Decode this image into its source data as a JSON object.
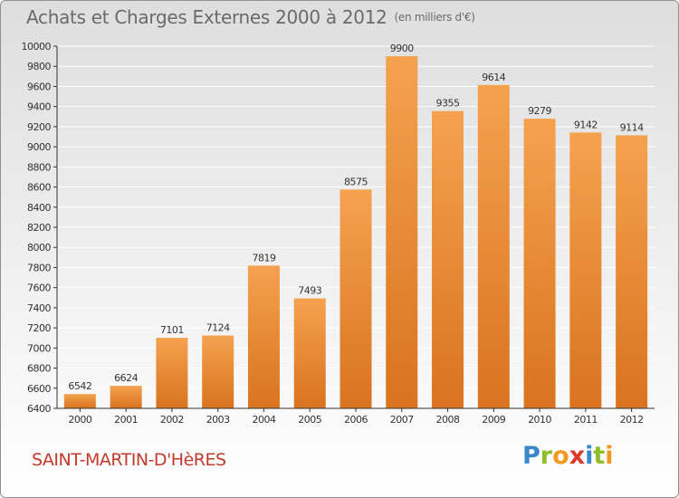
{
  "title": "Achats et Charges Externes 2000 à 2012",
  "title_unit": "(en milliers d'€)",
  "location": "SAINT-MARTIN-D'HèRES",
  "logo": {
    "text": "Proxiti",
    "letters": [
      "P",
      "r",
      "o",
      "x",
      "i",
      "t",
      "i"
    ],
    "colors": [
      "#3a87c9",
      "#8fbe2d",
      "#f29a1f",
      "#d93a2b",
      "#3a87c9",
      "#8fbe2d",
      "#f29a1f"
    ]
  },
  "colors": {
    "bar_light": "#f5a24f",
    "bar_dark": "#d9731f",
    "axis": "#333333",
    "grid": "#ffffff"
  },
  "chart_data": {
    "type": "bar",
    "title": "Achats et Charges Externes 2000 à 2012",
    "subtitle": "(en milliers d'€)",
    "categories": [
      "2000",
      "2001",
      "2002",
      "2003",
      "2004",
      "2005",
      "2006",
      "2007",
      "2008",
      "2009",
      "2010",
      "2011",
      "2012"
    ],
    "values": [
      6542,
      6624,
      7101,
      7124,
      7819,
      7493,
      8575,
      9900,
      9355,
      9614,
      9279,
      9142,
      9114
    ],
    "ylim": [
      6400,
      10000
    ],
    "yticks": [
      6400,
      6600,
      6800,
      7000,
      7200,
      7400,
      7600,
      7800,
      8000,
      8200,
      8400,
      8600,
      8800,
      9000,
      9200,
      9400,
      9600,
      9800,
      10000
    ],
    "grid": true,
    "legend": "none"
  }
}
